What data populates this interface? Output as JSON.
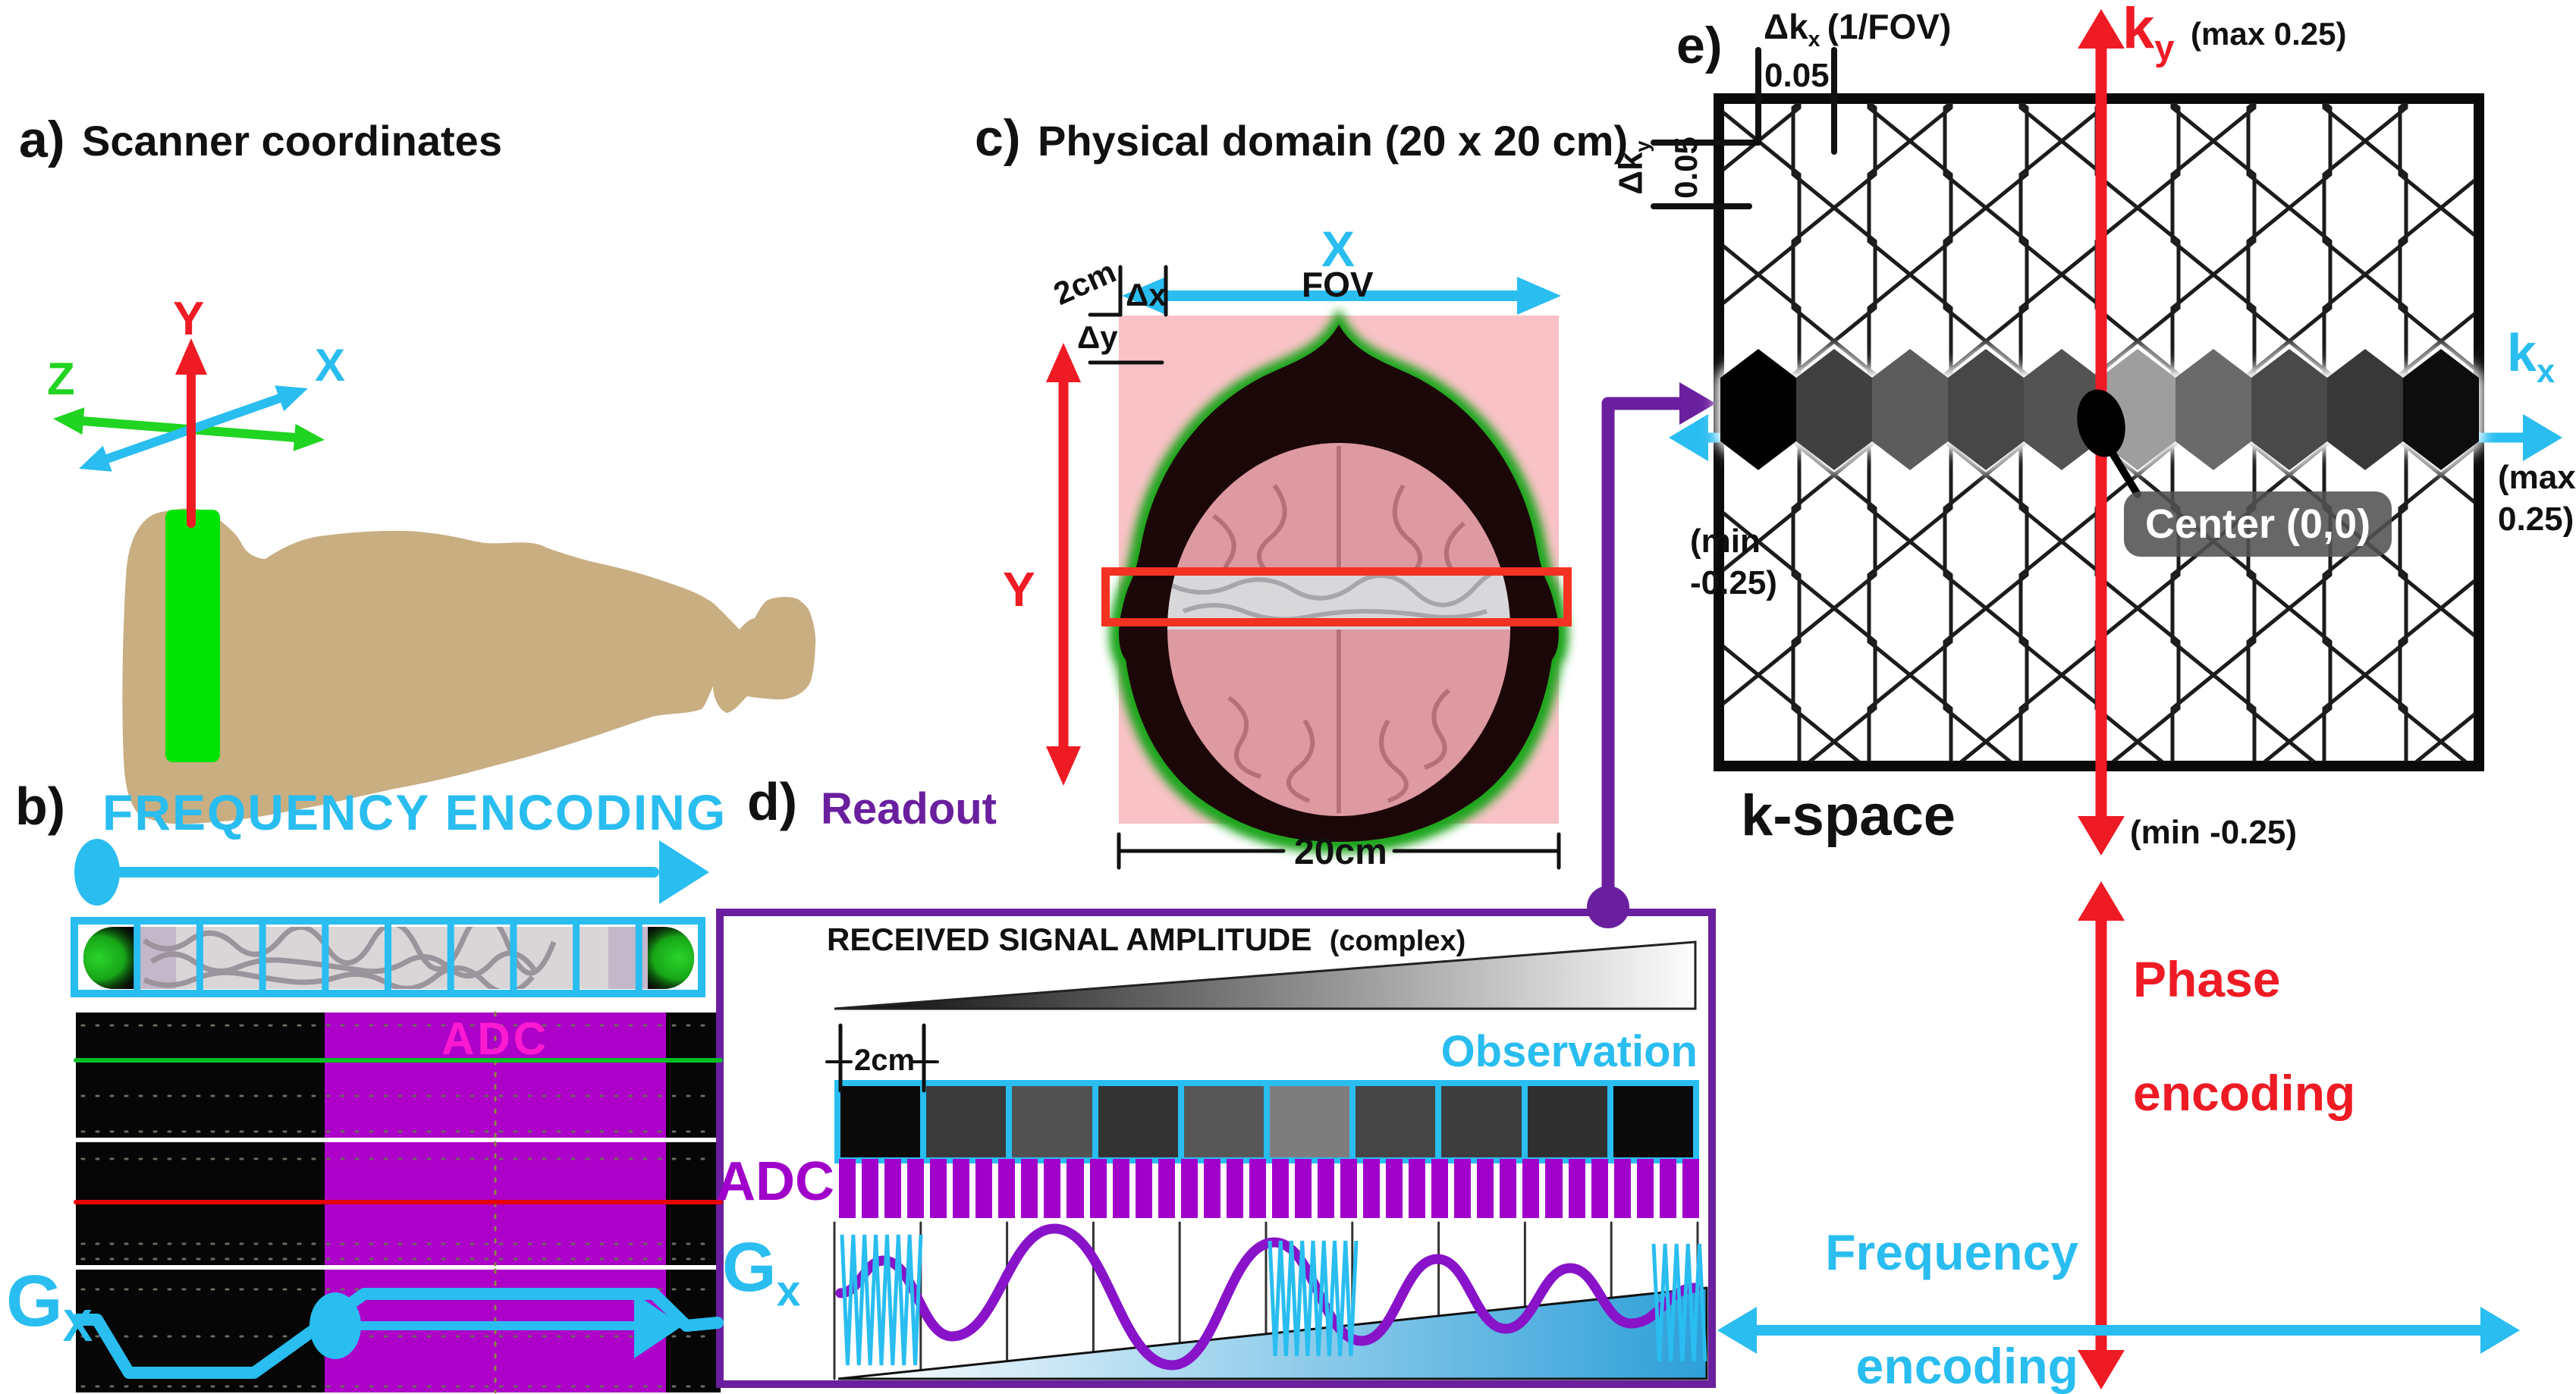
{
  "colors": {
    "cyan": "#29bdf0",
    "red": "#ee1b24",
    "green_axis": "#21d421",
    "slice_green": "#00e405",
    "readout_purple": "#6a1f9e",
    "adc_purple": "#a100cb",
    "adc_magenta": "#ff1ad1",
    "body_tan": "#c9ae82",
    "grid_pink": "#f9c2c6"
  },
  "panel_a": {
    "label": "a)",
    "title": "Scanner coordinates",
    "axis_x": "X",
    "axis_y": "Y",
    "axis_z": "Z"
  },
  "panel_b": {
    "label": "b)",
    "title": "FREQUENCY ENCODING",
    "adc": "ADC",
    "gx_main": "G",
    "gx_sub": "X"
  },
  "panel_c": {
    "label": "c)",
    "title": "Physical domain (20 x 20 cm)",
    "axis_x": "X",
    "fov": "FOV",
    "size_label": "2cm",
    "dx": "Δx",
    "dy": "Δy",
    "axis_y": "Y",
    "width_label": "20cm",
    "grid_columns": 10,
    "grid_rows": 10
  },
  "panel_d": {
    "label": "d)",
    "title": "Readout",
    "signal_title": "RECEIVED SIGNAL AMPLITUDE",
    "signal_sub": "(complex)",
    "size_label": "2cm",
    "observation": "Observation",
    "adc": "ADC",
    "gx_main": "G",
    "gx_sub": "x",
    "observation_values": [
      "#0a0a0a",
      "#3a3a3a",
      "#525252",
      "#333333",
      "#575757",
      "#7d7d7d",
      "#454545",
      "#3d3d3d",
      "#303030",
      "#0a0a0a"
    ],
    "adc_samples": 38
  },
  "panel_e": {
    "label": "e)",
    "dkx_main": "Δk",
    "dkx_sub": "x",
    "dkx_unit": "(1/FOV)",
    "dkx_value": "0.05",
    "dky_main": "Δk",
    "dky_sub": "y",
    "dky_value": "0.05",
    "ky_main": "k",
    "ky_sub": "y",
    "ky_max": "(max 0.25)",
    "ky_min": "(min -0.25)",
    "kx_main": "k",
    "kx_sub": "x",
    "kx_max_line1": "(max",
    "kx_max_line2": "0.25)",
    "kx_min_line1": "(min",
    "kx_min_line2": "-0.25)",
    "center_label": "Center (0,0)",
    "kspace_label": "k-space",
    "phase_line1": "Phase",
    "phase_line2": "encoding",
    "freq_line1": "Frequency",
    "freq_line2": "encoding",
    "kspace_row_values": [
      "#000000",
      "#3f3f3f",
      "#5c5c5c",
      "#474747",
      "#525252",
      "#9e9e9e",
      "#6b6b6b",
      "#4a4a4a",
      "#383838",
      "#0a0a0a"
    ]
  }
}
